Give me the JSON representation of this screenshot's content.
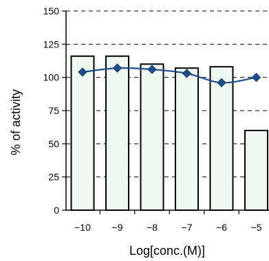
{
  "chart_data": {
    "type": "bar",
    "title": "",
    "xlabel": "Log[conc.(M)]",
    "ylabel": "% of activity",
    "categories": [
      "-10",
      "-9",
      "-8",
      "-7",
      "-6",
      "-5"
    ],
    "ylim": [
      0,
      150
    ],
    "yticks": [
      "0",
      "25",
      "50",
      "75",
      "100",
      "125",
      "150"
    ],
    "grid": "dashed horizontal",
    "series": [
      {
        "kind": "bar",
        "values": [
          116,
          116,
          110,
          107,
          108,
          60
        ]
      },
      {
        "kind": "line",
        "values": [
          104,
          107,
          106,
          103,
          96,
          100
        ]
      }
    ],
    "colors": {
      "bar_fill": "#eef8f1",
      "bar_stroke": "#000000",
      "line": "#1f4e8c",
      "marker": "#1f4e8c",
      "grid": "#000000"
    }
  }
}
